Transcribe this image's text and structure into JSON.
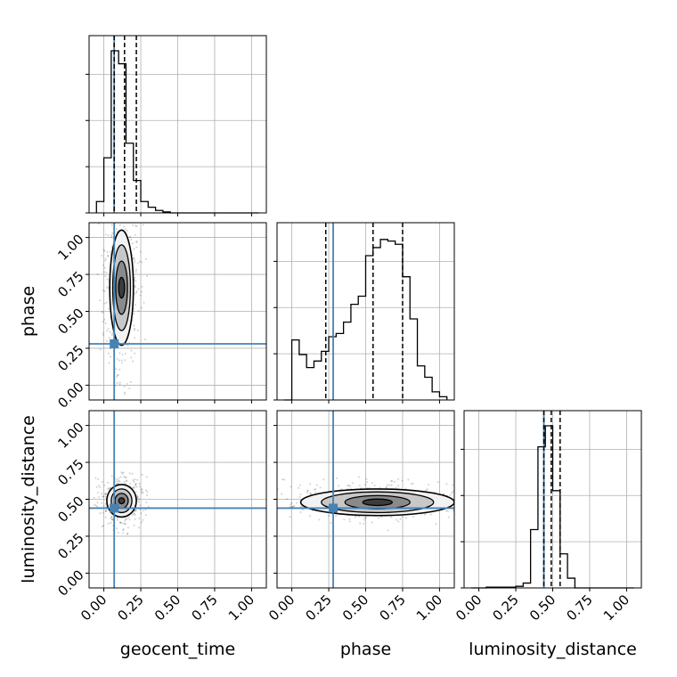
{
  "chart_data": {
    "type": "corner",
    "parameters": [
      "geocent_time",
      "phase",
      "luminosity_distance"
    ],
    "axis_range": [
      -0.1,
      1.1
    ],
    "ticks": [
      0.0,
      0.25,
      0.5,
      0.75,
      1.0
    ],
    "tick_labels": [
      "0.00",
      "0.25",
      "0.50",
      "0.75",
      "1.00"
    ],
    "grid": true,
    "truths": {
      "geocent_time": 0.07,
      "phase": 0.28,
      "luminosity_distance": 0.44
    },
    "quantiles": {
      "geocent_time": [
        0.07,
        0.14,
        0.22
      ],
      "phase": [
        0.23,
        0.55,
        0.75
      ],
      "luminosity_distance": [
        0.44,
        0.49,
        0.55
      ]
    },
    "histograms": {
      "geocent_time": {
        "edges": [
          -0.05,
          0.0,
          0.05,
          0.1,
          0.15,
          0.2,
          0.25,
          0.3,
          0.35,
          0.4,
          0.45,
          0.5,
          0.55,
          0.6,
          0.65,
          0.7,
          0.75,
          0.8,
          0.85,
          0.9,
          0.95,
          1.0,
          1.05
        ],
        "counts": [
          0.07,
          0.34,
          1.0,
          0.92,
          0.43,
          0.2,
          0.07,
          0.035,
          0.015,
          0.006,
          0,
          0,
          0,
          0,
          0,
          0,
          0,
          0,
          0,
          0,
          0,
          0
        ]
      },
      "phase": {
        "edges": [
          -0.05,
          0.0,
          0.05,
          0.1,
          0.15,
          0.2,
          0.25,
          0.3,
          0.35,
          0.4,
          0.45,
          0.5,
          0.55,
          0.6,
          0.65,
          0.7,
          0.75,
          0.8,
          0.85,
          0.9,
          0.95,
          1.0,
          1.05
        ],
        "counts": [
          0.0,
          0.37,
          0.28,
          0.2,
          0.24,
          0.3,
          0.39,
          0.41,
          0.48,
          0.59,
          0.64,
          0.89,
          0.94,
          0.99,
          0.98,
          0.96,
          0.76,
          0.5,
          0.21,
          0.14,
          0.05,
          0.02
        ]
      },
      "luminosity_distance": {
        "edges": [
          -0.05,
          0.0,
          0.05,
          0.1,
          0.15,
          0.2,
          0.25,
          0.3,
          0.35,
          0.4,
          0.45,
          0.5,
          0.55,
          0.6,
          0.65,
          0.7,
          0.75,
          0.8,
          0.85,
          0.9,
          0.95,
          1.0,
          1.05
        ],
        "counts": [
          0,
          0,
          0.005,
          0.005,
          0.005,
          0.005,
          0.01,
          0.03,
          0.36,
          0.87,
          1.0,
          0.6,
          0.21,
          0.06,
          0.0,
          0,
          0,
          0,
          0,
          0,
          0,
          0
        ]
      }
    },
    "pair_densities": [
      {
        "x": "geocent_time",
        "y": "phase",
        "center": [
          0.12,
          0.66
        ],
        "levels": [
          {
            "spread": [
              0.08,
              0.39
            ],
            "fill": "#f2f2f2"
          },
          {
            "spread": [
              0.06,
              0.29
            ],
            "fill": "#c8c8c8"
          },
          {
            "spread": [
              0.04,
              0.18
            ],
            "fill": "#8a8a8a"
          },
          {
            "spread": [
              0.02,
              0.07
            ],
            "fill": "#3c3c3c"
          }
        ]
      },
      {
        "x": "geocent_time",
        "y": "luminosity_distance",
        "center": [
          0.12,
          0.49
        ],
        "levels": [
          {
            "spread": [
              0.1,
              0.11
            ],
            "fill": "#f2f2f2"
          },
          {
            "spread": [
              0.07,
              0.08
            ],
            "fill": "#c8c8c8"
          },
          {
            "spread": [
              0.045,
              0.05
            ],
            "fill": "#8a8a8a"
          },
          {
            "spread": [
              0.02,
              0.02
            ],
            "fill": "#3c3c3c"
          }
        ]
      },
      {
        "x": "phase",
        "y": "luminosity_distance",
        "center": [
          0.58,
          0.48
        ],
        "levels": [
          {
            "spread": [
              0.52,
              0.09
            ],
            "fill": "#f2f2f2"
          },
          {
            "spread": [
              0.38,
              0.07
            ],
            "fill": "#c8c8c8"
          },
          {
            "spread": [
              0.22,
              0.045
            ],
            "fill": "#8a8a8a"
          },
          {
            "spread": [
              0.1,
              0.022
            ],
            "fill": "#3c3c3c"
          }
        ]
      }
    ]
  }
}
